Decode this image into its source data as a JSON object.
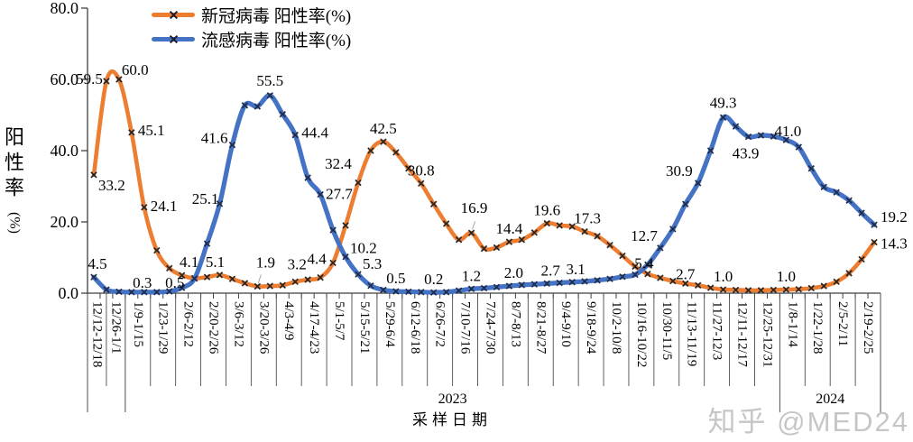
{
  "watermark": "知乎 @MED24",
  "legend": {
    "items": [
      {
        "label": "新冠病毒 阳性率(%)",
        "color": "#ED7D31"
      },
      {
        "label": "流感病毒 阳性率(%)",
        "color": "#4472C4"
      }
    ]
  },
  "y_axis": {
    "title_chars": [
      "阳",
      "性",
      "率"
    ],
    "title_unit": "(%)",
    "tick_labels": [
      "0.0",
      "20.0",
      "40.0",
      "60.0",
      "80.0"
    ]
  },
  "x_axis": {
    "title": "采样日期",
    "year_labels": [
      "2023",
      "2024"
    ]
  },
  "chart_data": {
    "type": "line",
    "title": "",
    "xlabel": "采样日期",
    "ylabel": "阳性率(%)",
    "ylim": [
      0,
      80
    ],
    "y_ticks": [
      0,
      20,
      40,
      60,
      80
    ],
    "n_points": 63,
    "weeks_per_tick_label": 2,
    "x_tick_labels": [
      "12/12-12/18",
      "12/26-1/1",
      "1/9-1/15",
      "1/23-1/29",
      "2/6-2/12",
      "2/20-2/26",
      "3/6-3/12",
      "3/20-3/26",
      "4/3-4/9",
      "4/17-4/23",
      "5/1-5/7",
      "5/15-5/21",
      "5/29-6/4",
      "6/12-6/18",
      "6/26-7/2",
      "7/10-7/16",
      "7/24-7/30",
      "8/7-8/13",
      "8/21-8/27",
      "9/4-9/10",
      "9/18-9/24",
      "10/2-10/8",
      "10/16-10/22",
      "10/30-11/5",
      "11/13-11/19",
      "11/27-12/3",
      "12/11-12/17",
      "12/25-12/31",
      "1/8-1/14",
      "1/22-1/28",
      "2/5-2/11",
      "2/19-2/25"
    ],
    "year_groups": [
      {
        "label": "",
        "from_week": 0,
        "to_week": 3
      },
      {
        "label": "2023",
        "from_week": 3,
        "to_week": 55
      },
      {
        "label": "2024",
        "from_week": 55,
        "to_week": 63
      }
    ],
    "series": [
      {
        "name": "新冠病毒 阳性率(%)",
        "color": "#ED7D31",
        "marker_color": "#262626",
        "values": [
          33.2,
          59.5,
          60.0,
          45.1,
          24.1,
          12.0,
          7.0,
          5.0,
          4.2,
          4.5,
          5.1,
          4.0,
          2.8,
          1.9,
          2.0,
          2.2,
          3.2,
          3.8,
          4.4,
          8.5,
          19.0,
          31.0,
          40.0,
          42.5,
          39.5,
          35.0,
          30.8,
          25.0,
          19.5,
          15.0,
          16.9,
          12.5,
          12.8,
          14.4,
          15.0,
          17.0,
          19.6,
          19.0,
          18.7,
          17.3,
          16.0,
          13.5,
          10.5,
          7.5,
          5.4,
          4.3,
          3.4,
          2.7,
          2.2,
          1.5,
          1.0,
          0.9,
          0.8,
          0.8,
          0.9,
          1.0,
          1.1,
          1.4,
          2.0,
          3.2,
          5.6,
          9.5,
          14.3
        ],
        "point_labels": [
          {
            "i": 0,
            "t": "33.2",
            "pos": "below-right"
          },
          {
            "i": 1,
            "t": "59.5",
            "pos": "left",
            "ox": 1,
            "oy": -1
          },
          {
            "i": 2,
            "t": "60.0",
            "pos": "above-right",
            "ox": -2,
            "oy": 1
          },
          {
            "i": 3,
            "t": "45.1",
            "pos": "right",
            "oy": -2
          },
          {
            "i": 4,
            "t": "24.1",
            "pos": "right",
            "oy": -1
          },
          {
            "i": 10,
            "t": "5.1",
            "pos": "above",
            "ox": -5
          },
          {
            "i": 13,
            "t": "1.9",
            "pos": "above",
            "ox": 9,
            "oy": -12,
            "leader": true
          },
          {
            "i": 16,
            "t": "3.2",
            "pos": "above",
            "ox": 2,
            "oy": -5
          },
          {
            "i": 18,
            "t": "4.4",
            "pos": "above",
            "ox": -4,
            "oy": -6
          },
          {
            "i": 23,
            "t": "42.5",
            "pos": "above"
          },
          {
            "i": 26,
            "t": "30.8",
            "pos": "above"
          },
          {
            "i": 30,
            "t": "16.9",
            "pos": "above",
            "ox": 3,
            "oy": -13,
            "leader": true
          },
          {
            "i": 33,
            "t": "14.4",
            "pos": "above"
          },
          {
            "i": 36,
            "t": "19.6",
            "pos": "above"
          },
          {
            "i": 39,
            "t": "17.3",
            "pos": "above",
            "ox": 3
          },
          {
            "i": 44,
            "t": "5.4",
            "pos": "above",
            "ox": -4,
            "oy": 3
          },
          {
            "i": 47,
            "t": "2.7",
            "pos": "above",
            "oy": 4
          },
          {
            "i": 50,
            "t": "1.0",
            "pos": "above"
          },
          {
            "i": 55,
            "t": "1.0",
            "pos": "above"
          },
          {
            "i": 62,
            "t": "14.3",
            "pos": "right",
            "oy": 2
          }
        ]
      },
      {
        "name": "流感病毒 阳性率(%)",
        "color": "#4472C4",
        "marker_color": "#1f2b47",
        "values": [
          4.5,
          1.0,
          0.4,
          0.3,
          0.3,
          0.3,
          0.5,
          1.5,
          4.1,
          13.9,
          25.1,
          41.6,
          52.7,
          52.4,
          55.5,
          50.2,
          44.4,
          32.4,
          27.7,
          17.7,
          10.2,
          5.3,
          2.1,
          0.9,
          0.5,
          0.4,
          0.3,
          0.2,
          0.3,
          0.7,
          1.2,
          1.4,
          1.7,
          2.0,
          2.3,
          2.5,
          2.7,
          2.9,
          3.1,
          3.3,
          3.6,
          4.0,
          4.6,
          5.2,
          8.0,
          12.7,
          18.0,
          25.0,
          30.9,
          40.0,
          49.3,
          46.8,
          43.9,
          44.3,
          44.0,
          43.0,
          41.0,
          35.0,
          29.8,
          28.3,
          26.0,
          22.5,
          19.2
        ],
        "point_labels": [
          {
            "i": 0,
            "t": "4.5",
            "pos": "above",
            "ox": 4
          },
          {
            "i": 4,
            "t": "0.3",
            "pos": "above",
            "ox": -2,
            "oy": 4
          },
          {
            "i": 6,
            "t": "0.5",
            "pos": "above",
            "ox": 6,
            "oy": 5
          },
          {
            "i": 8,
            "t": "4.1",
            "pos": "above",
            "ox": -6,
            "oy": -4
          },
          {
            "i": 10,
            "t": "25.1",
            "pos": "left",
            "ox": 4,
            "oy": -4
          },
          {
            "i": 11,
            "t": "41.6",
            "pos": "left",
            "oy": -6
          },
          {
            "i": 14,
            "t": "55.5",
            "pos": "above",
            "oy": -2
          },
          {
            "i": 16,
            "t": "44.4",
            "pos": "right",
            "oy": -2
          },
          {
            "i": 17,
            "t": "32.4",
            "pos": "above-right",
            "ox": 14,
            "oy": -4
          },
          {
            "i": 18,
            "t": "27.7",
            "pos": "right",
            "ox": -1
          },
          {
            "i": 20,
            "t": "10.2",
            "pos": "above-right",
            "oy": 2
          },
          {
            "i": 21,
            "t": "5.3",
            "pos": "above-right"
          },
          {
            "i": 24,
            "t": "0.5",
            "pos": "above"
          },
          {
            "i": 27,
            "t": "0.2",
            "pos": "above"
          },
          {
            "i": 30,
            "t": "1.2",
            "pos": "above"
          },
          {
            "i": 33,
            "t": "2.0",
            "pos": "above",
            "ox": 5
          },
          {
            "i": 36,
            "t": "2.7",
            "pos": "above",
            "ox": 4
          },
          {
            "i": 38,
            "t": "3.1",
            "pos": "above",
            "ox": 4
          },
          {
            "i": 45,
            "t": "12.7",
            "pos": "above-left"
          },
          {
            "i": 48,
            "t": "30.9",
            "pos": "above-left",
            "ox": -3
          },
          {
            "i": 50,
            "t": "49.3",
            "pos": "above",
            "oy": -2
          },
          {
            "i": 52,
            "t": "43.9",
            "pos": "below",
            "ox": -3
          },
          {
            "i": 56,
            "t": "41.0",
            "pos": "above-left",
            "ox": 6,
            "oy": -4
          },
          {
            "i": 62,
            "t": "19.2",
            "pos": "right",
            "oy": -8
          }
        ]
      }
    ]
  }
}
